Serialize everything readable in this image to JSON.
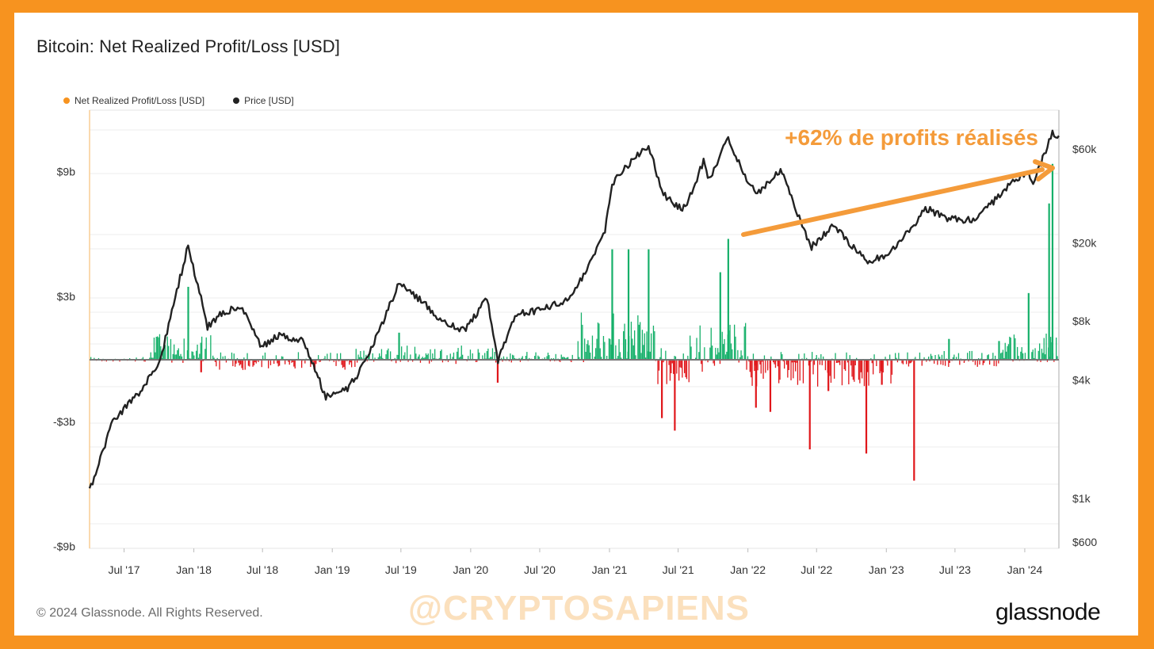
{
  "page": {
    "title": "Bitcoin: Net Realized Profit/Loss [USD]",
    "footer_copyright": "© 2024 Glassnode. All Rights Reserved.",
    "watermark": "@CRYPTOSAPIENS",
    "brand": "glassnode",
    "annotation": "+62% de profits réalisés"
  },
  "colors": {
    "background_frame": "#f7931f",
    "profit": "#16b06a",
    "loss": "#e0161a",
    "price": "#222222",
    "annotation": "#f49b3a"
  },
  "chart_data": {
    "type": "line",
    "title": "Bitcoin: Net Realized Profit/Loss [USD]",
    "legend": [
      {
        "name": "Net Realized Profit/Loss [USD]",
        "color": "#f7931f"
      },
      {
        "name": "Price [USD]",
        "color": "#222222"
      }
    ],
    "legend_position": "top-left",
    "x_ticks": [
      "Jul '17",
      "Jan '18",
      "Jul '18",
      "Jan '19",
      "Jul '19",
      "Jan '20",
      "Jul '20",
      "Jan '21",
      "Jul '21",
      "Jan '22",
      "Jul '22",
      "Jan '23",
      "Jul '23",
      "Jan '24"
    ],
    "xlim": [
      "2017-04-01",
      "2024-03-31"
    ],
    "y_left": {
      "label": "",
      "ticks": [
        "$9b",
        "$3b",
        "-$3b",
        "-$9b"
      ],
      "tick_values": [
        9,
        3,
        -3,
        -9
      ],
      "unit": "billion USD"
    },
    "y_right": {
      "label": "",
      "scale": "log",
      "ticks": [
        "$60k",
        "$20k",
        "$8k",
        "$4k",
        "$1k",
        "$600"
      ],
      "tick_values": [
        60000,
        20000,
        8000,
        4000,
        1000,
        600
      ]
    },
    "grid": true,
    "series": [
      {
        "name": "Price [USD]",
        "axis": "right",
        "x": [
          "2017-04-01",
          "2017-06-01",
          "2017-08-01",
          "2017-10-01",
          "2017-12-17",
          "2018-02-06",
          "2018-03-15",
          "2018-05-05",
          "2018-06-29",
          "2018-08-10",
          "2018-10-15",
          "2018-12-15",
          "2019-02-10",
          "2019-04-01",
          "2019-06-26",
          "2019-08-15",
          "2019-10-25",
          "2019-12-15",
          "2020-02-13",
          "2020-03-13",
          "2020-05-01",
          "2020-07-15",
          "2020-09-20",
          "2020-11-15",
          "2020-12-20",
          "2021-01-08",
          "2021-02-15",
          "2021-04-14",
          "2021-05-19",
          "2021-06-22",
          "2021-07-20",
          "2021-09-06",
          "2021-09-21",
          "2021-11-10",
          "2021-12-20",
          "2022-01-22",
          "2022-03-28",
          "2022-05-12",
          "2022-06-18",
          "2022-08-14",
          "2022-11-09",
          "2022-12-25",
          "2023-03-15",
          "2023-04-14",
          "2023-06-15",
          "2023-08-18",
          "2023-10-23",
          "2023-12-05",
          "2024-01-11",
          "2024-01-23",
          "2024-03-05",
          "2024-03-14",
          "2024-03-31"
        ],
        "values": [
          1080,
          2500,
          3300,
          4800,
          19500,
          7500,
          8800,
          9500,
          5900,
          6700,
          6400,
          3300,
          3600,
          5000,
          12500,
          10500,
          7800,
          7200,
          10300,
          5000,
          8700,
          9200,
          10500,
          16000,
          23000,
          40000,
          49000,
          63000,
          36000,
          31000,
          30000,
          52000,
          42000,
          68000,
          46000,
          35000,
          47000,
          28000,
          19000,
          24500,
          16200,
          16800,
          24500,
          30000,
          26500,
          26000,
          34000,
          42000,
          46500,
          39500,
          66000,
          73000,
          70000
        ]
      },
      {
        "name": "Net Realized Profit/Loss [USD]",
        "axis": "left",
        "note": "profit shown green, loss shown red",
        "x": [
          "2017-12-17",
          "2018-01-20",
          "2019-06-26",
          "2020-03-12",
          "2021-01-08",
          "2021-02-20",
          "2021-04-14",
          "2021-05-19",
          "2021-06-22",
          "2021-10-20",
          "2021-11-10",
          "2022-01-22",
          "2022-03-01",
          "2022-06-13",
          "2022-08-01",
          "2022-11-09",
          "2022-12-20",
          "2023-03-15",
          "2023-06-15",
          "2023-10-25",
          "2024-01-11",
          "2024-03-05",
          "2024-03-14"
        ],
        "values": [
          3.5,
          -0.6,
          1.3,
          -1.1,
          5.3,
          5.3,
          5.3,
          -2.8,
          -3.4,
          4.2,
          5.8,
          -2.3,
          -2.5,
          -4.3,
          -1.5,
          -4.5,
          -1.2,
          -5.8,
          1.0,
          0.9,
          3.2,
          7.5,
          9.4
        ]
      }
    ]
  }
}
